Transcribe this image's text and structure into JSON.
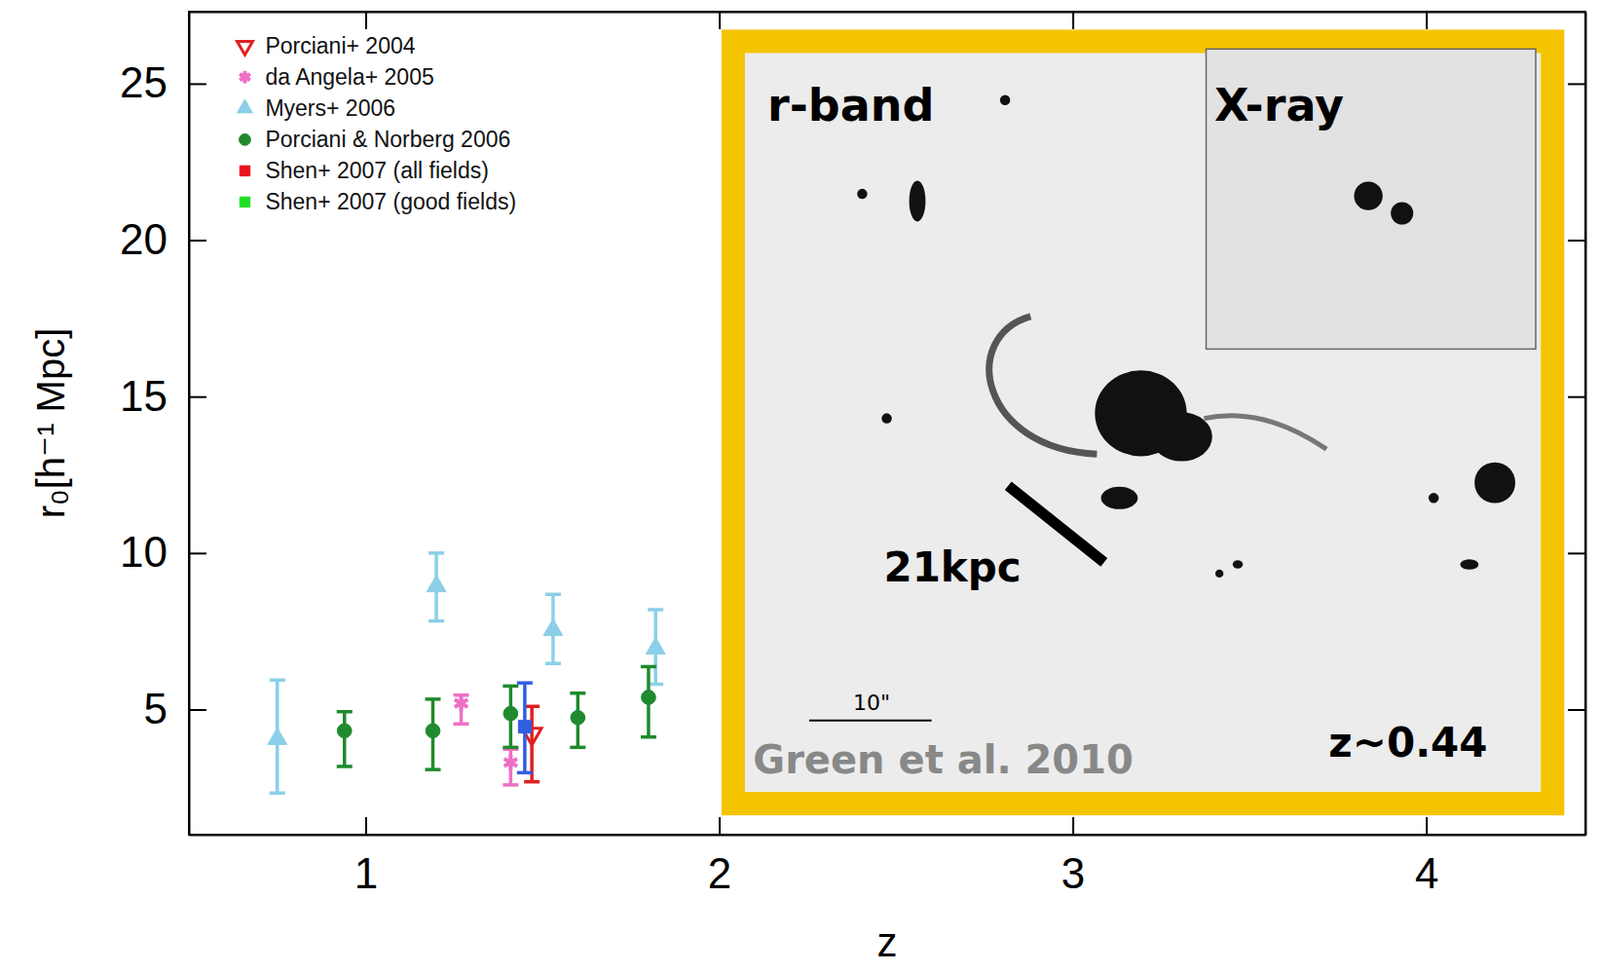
{
  "chart_data": {
    "type": "scatter",
    "xlabel": "z",
    "ylabel": "r₀[h⁻¹ Mpc]",
    "xlim": [
      0.5,
      4.45
    ],
    "ylim": [
      1,
      27.3
    ],
    "xticks": [
      1,
      2,
      3,
      4
    ],
    "yticks": [
      5,
      10,
      15,
      20,
      25
    ],
    "legend": "upper left",
    "series": [
      {
        "name": "Porciani+ 2004",
        "color": "#e02020",
        "marker": "triangle-down",
        "x": [
          1.47
        ],
        "values": [
          4.22
        ],
        "error_minus": [
          1.53
        ],
        "error_plus": [
          0.88
        ]
      },
      {
        "name": "da Angela+ 2005",
        "color": "#ee6fc6",
        "marker": "asterisk",
        "x": [
          1.27,
          1.41
        ],
        "values": [
          5.2,
          3.31
        ],
        "error_minus": [
          0.66,
          0.72
        ],
        "error_plus": [
          0.26,
          0.42
        ]
      },
      {
        "name": "Myers+ 2006",
        "color": "#8ccfe8",
        "marker": "triangle",
        "x": [
          0.75,
          1.2,
          1.53,
          1.82
        ],
        "values": [
          4.06,
          8.94,
          7.54,
          6.95
        ],
        "error_minus": [
          1.73,
          1.11,
          1.07,
          1.14
        ],
        "error_plus": [
          1.88,
          1.06,
          1.14,
          1.24
        ]
      },
      {
        "name": "Porciani & Norberg 2006",
        "color": "#1f8a2e",
        "marker": "circle",
        "x": [
          0.94,
          1.19,
          1.41,
          1.6,
          1.8
        ],
        "values": [
          4.32,
          4.32,
          4.87,
          4.74,
          5.39
        ],
        "error_minus": [
          1.14,
          1.24,
          1.08,
          0.95,
          1.27
        ],
        "error_plus": [
          0.61,
          1.01,
          0.88,
          0.78,
          0.98
        ]
      },
      {
        "name": "Shen+ 2007 (all fields)",
        "color": "#e8141c",
        "marker": "square",
        "x": [],
        "values": [],
        "error_minus": [],
        "error_plus": []
      },
      {
        "name": "Shen+ 2007 (good fields)",
        "color": "#22dd22",
        "marker": "square",
        "x": [],
        "values": [],
        "error_minus": [],
        "error_plus": []
      },
      {
        "name": null,
        "color": "#3060e0",
        "marker": "square",
        "x": [
          1.45
        ],
        "values": [
          4.45
        ],
        "error_minus": [
          1.47
        ],
        "error_plus": [
          1.4
        ]
      }
    ],
    "inset": {
      "band_label": "r-band",
      "xray_label": "X-ray",
      "scale_label": "21kpc",
      "angular_scale_label": "10\"",
      "credit": "Green et al. 2010",
      "redshift_label": "z~0.44"
    }
  }
}
